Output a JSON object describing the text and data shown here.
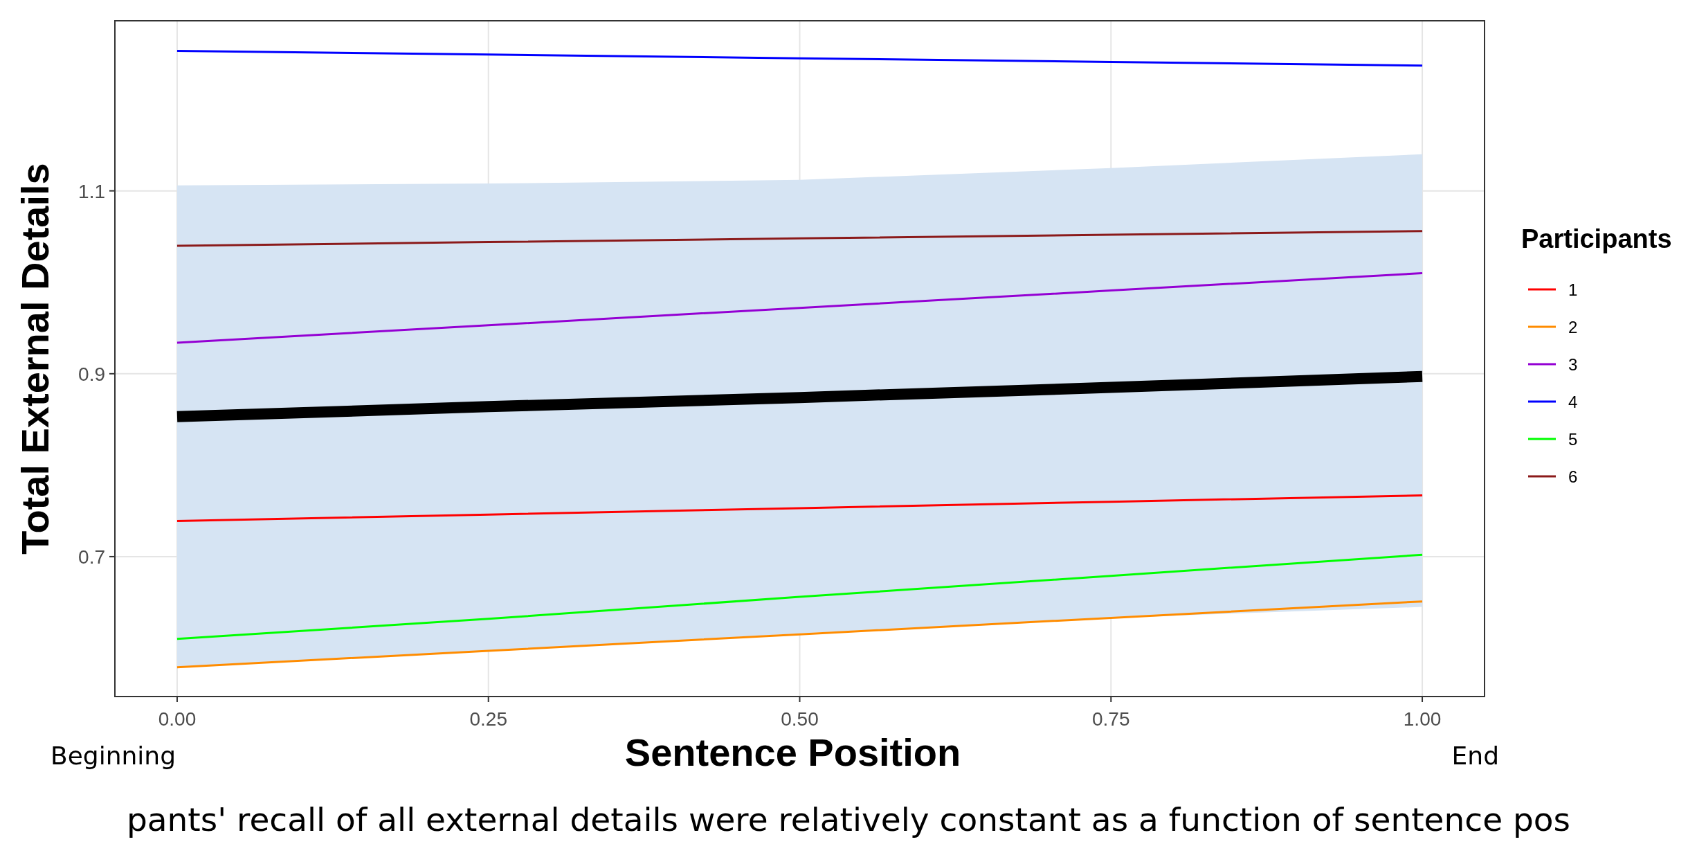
{
  "chart_data": {
    "type": "line",
    "xlabel": "Sentence Position",
    "ylabel": "Total External Details",
    "legend_title": "Participants",
    "xlim": [
      -0.05,
      1.05
    ],
    "ylim": [
      0.547,
      1.286
    ],
    "xticks": [
      {
        "value": 0,
        "label": "0.00"
      },
      {
        "value": 0.25,
        "label": "0.25"
      },
      {
        "value": 0.5,
        "label": "0.50"
      },
      {
        "value": 0.75,
        "label": "0.75"
      },
      {
        "value": 1,
        "label": "1.00"
      }
    ],
    "yticks": [
      0.7,
      0.9,
      1.1
    ],
    "grid": true,
    "legend": "right",
    "x": [
      0,
      0.25,
      0.5,
      0.75,
      1
    ],
    "series": [
      {
        "color": "#000000",
        "values": [
          0.853,
          0.864,
          0.874,
          0.885,
          0.897
        ],
        "lower": [
          0.579,
          0.597,
          0.616,
          0.633,
          0.645
        ],
        "upper": [
          1.106,
          1.108,
          1.112,
          1.125,
          1.14
        ]
      },
      {
        "name": "1",
        "color": "#ff0000",
        "values": [
          0.739,
          0.746,
          0.753,
          0.76,
          0.767
        ]
      },
      {
        "name": "2",
        "color": "#ff8c00",
        "values": [
          0.579,
          0.597,
          0.615,
          0.633,
          0.651
        ]
      },
      {
        "name": "3",
        "color": "#9400d3",
        "values": [
          0.934,
          0.953,
          0.972,
          0.991,
          1.01
        ]
      },
      {
        "name": "4",
        "color": "#0000ff",
        "values": [
          1.253,
          1.249,
          1.245,
          1.241,
          1.237
        ]
      },
      {
        "name": "5",
        "color": "#00ff00",
        "values": [
          0.61,
          0.632,
          0.656,
          0.679,
          0.702
        ]
      },
      {
        "name": "6",
        "color": "#8b1a1a",
        "values": [
          1.04,
          1.044,
          1.048,
          1.052,
          1.056
        ]
      }
    ],
    "annotations": [
      "Beginning",
      "End",
      "pants' recall of all external details were relatively constant as a function of sentence pos"
    ]
  }
}
